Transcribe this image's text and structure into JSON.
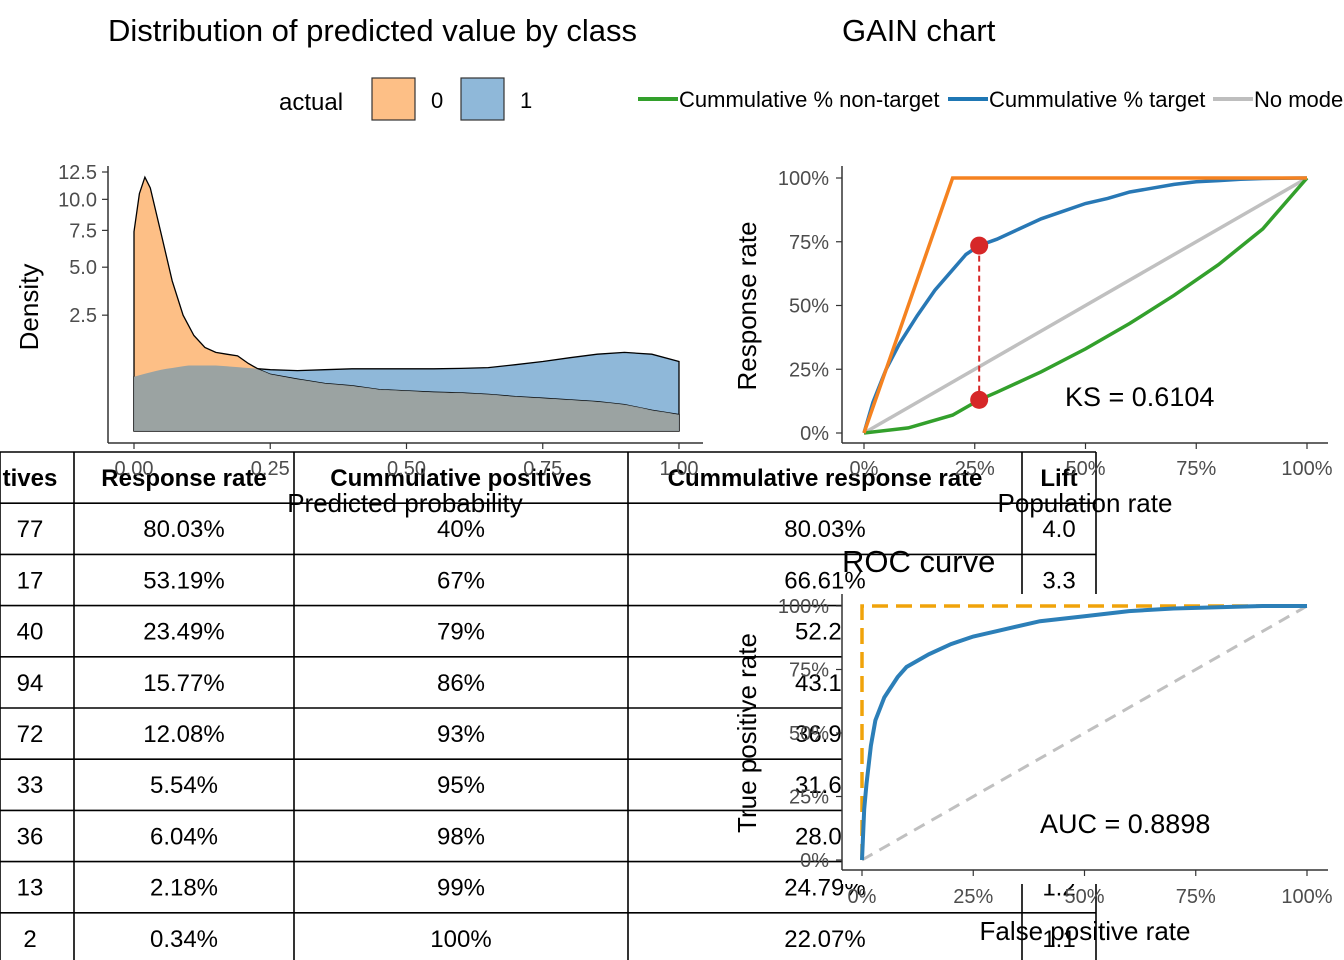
{
  "titles": {
    "density": "Distribution of predicted value by class",
    "gain": "GAIN chart",
    "roc": "ROC curve"
  },
  "legends": {
    "density": {
      "title": "actual",
      "items": [
        {
          "label": "0",
          "fill": "#fdbf86",
          "stroke": "#f28e2b"
        },
        {
          "label": "1",
          "fill": "#8fb8d9",
          "stroke": "#2c6ea3"
        }
      ]
    },
    "gain": {
      "items": [
        {
          "label": "Cummulative % non-target",
          "color": "#33a02c"
        },
        {
          "label": "Cummulative % target",
          "color": "#1f77b4"
        },
        {
          "label": "No mode",
          "color": "#bebebe"
        }
      ]
    }
  },
  "colors": {
    "class0_fill": "#fdbf86",
    "class1_fill": "#8fb8d9",
    "overlap_fill": "#96a1a3",
    "target": "#2878b5",
    "non_target": "#33a02c",
    "no_model": "#c0c0c0",
    "perfect": "#f58220",
    "ks_marker": "#d62728",
    "roc_curve": "#2c7fb8",
    "roc_ideal": "#f0a30a"
  },
  "chart_data": [
    {
      "type": "area",
      "name": "density",
      "xlabel": "Predicted probability",
      "ylabel": "Density",
      "x_ticks": [
        "0.00",
        "0.25",
        "0.50",
        "0.75",
        "1.00"
      ],
      "y_ticks": [
        "2.5",
        "5.0",
        "7.5",
        "10.0",
        "12.5"
      ],
      "xlim": [
        0,
        1
      ],
      "y_scale": "sqrt",
      "ylim": [
        0,
        12.5
      ],
      "grid": false,
      "legend_position": "top",
      "series": [
        {
          "name": "0",
          "x": [
            0,
            0.01,
            0.02,
            0.03,
            0.05,
            0.07,
            0.09,
            0.11,
            0.13,
            0.15,
            0.17,
            0.19,
            0.21,
            0.23,
            0.25,
            0.3,
            0.35,
            0.4,
            0.45,
            0.5,
            0.55,
            0.6,
            0.65,
            0.7,
            0.75,
            0.8,
            0.85,
            0.9,
            0.95,
            1.0
          ],
          "y": [
            7.4,
            10.5,
            12.0,
            11.0,
            7.2,
            4.2,
            2.5,
            1.7,
            1.3,
            1.15,
            1.1,
            1.05,
            0.85,
            0.7,
            0.6,
            0.5,
            0.42,
            0.38,
            0.32,
            0.3,
            0.28,
            0.27,
            0.25,
            0.22,
            0.2,
            0.18,
            0.16,
            0.13,
            0.08,
            0.05
          ]
        },
        {
          "name": "1",
          "x": [
            0,
            0.05,
            0.1,
            0.15,
            0.2,
            0.25,
            0.3,
            0.35,
            0.4,
            0.45,
            0.5,
            0.55,
            0.6,
            0.65,
            0.7,
            0.75,
            0.8,
            0.85,
            0.9,
            0.95,
            1.0
          ],
          "y": [
            0.55,
            0.7,
            0.8,
            0.8,
            0.75,
            0.7,
            0.68,
            0.7,
            0.72,
            0.72,
            0.72,
            0.72,
            0.73,
            0.75,
            0.82,
            0.9,
            1.0,
            1.1,
            1.15,
            1.1,
            0.9
          ]
        }
      ]
    },
    {
      "type": "line",
      "name": "gain",
      "xlabel": "Population rate",
      "ylabel": "Response rate",
      "x_ticks": [
        "0%",
        "25%",
        "50%",
        "75%",
        "100%"
      ],
      "y_ticks": [
        "0%",
        "25%",
        "50%",
        "75%",
        "100%"
      ],
      "xlim": [
        0,
        1
      ],
      "ylim": [
        0,
        1
      ],
      "grid": false,
      "legend_position": "top",
      "series": [
        {
          "name": "Cummulative % target",
          "x": [
            0,
            0.02,
            0.05,
            0.08,
            0.12,
            0.16,
            0.2,
            0.23,
            0.26,
            0.3,
            0.35,
            0.4,
            0.45,
            0.5,
            0.55,
            0.6,
            0.65,
            0.7,
            0.75,
            0.8,
            0.85,
            0.9,
            1.0
          ],
          "y": [
            0,
            0.12,
            0.25,
            0.35,
            0.46,
            0.56,
            0.64,
            0.7,
            0.735,
            0.76,
            0.8,
            0.84,
            0.87,
            0.9,
            0.92,
            0.945,
            0.96,
            0.975,
            0.985,
            0.99,
            0.995,
            0.998,
            1.0
          ]
        },
        {
          "name": "Cummulative % non-target",
          "x": [
            0,
            0.1,
            0.2,
            0.26,
            0.3,
            0.4,
            0.5,
            0.6,
            0.7,
            0.8,
            0.9,
            1.0
          ],
          "y": [
            0,
            0.02,
            0.07,
            0.13,
            0.16,
            0.24,
            0.33,
            0.43,
            0.54,
            0.66,
            0.8,
            1.0
          ]
        },
        {
          "name": "No mode",
          "x": [
            0,
            1
          ],
          "y": [
            0,
            1
          ]
        },
        {
          "name": "perfect model",
          "x": [
            0,
            0.2,
            1
          ],
          "y": [
            0,
            1,
            1
          ]
        }
      ],
      "ks_marker": {
        "x": 0.26,
        "y_target": 0.735,
        "y_non_target": 0.13
      },
      "annotation": "KS = 0.6104"
    },
    {
      "type": "line",
      "name": "roc",
      "xlabel": "False positive rate",
      "ylabel": "True positive rate",
      "x_ticks": [
        "0%",
        "25%",
        "50%",
        "75%",
        "100%"
      ],
      "y_ticks": [
        "0%",
        "25%",
        "50%",
        "75%",
        "100%"
      ],
      "xlim": [
        0,
        1
      ],
      "ylim": [
        0,
        1
      ],
      "grid": false,
      "series": [
        {
          "name": "roc",
          "x": [
            0,
            0.005,
            0.01,
            0.02,
            0.03,
            0.05,
            0.08,
            0.1,
            0.15,
            0.2,
            0.25,
            0.3,
            0.4,
            0.5,
            0.6,
            0.7,
            0.8,
            0.9,
            1.0
          ],
          "y": [
            0,
            0.2,
            0.3,
            0.45,
            0.55,
            0.64,
            0.72,
            0.76,
            0.81,
            0.85,
            0.88,
            0.9,
            0.94,
            0.96,
            0.98,
            0.99,
            0.995,
            1.0,
            1.0
          ]
        },
        {
          "name": "random",
          "x": [
            0,
            1
          ],
          "y": [
            0,
            1
          ]
        },
        {
          "name": "ideal",
          "x": [
            0,
            0,
            1
          ],
          "y": [
            0,
            1,
            1
          ]
        }
      ],
      "annotation": "AUC = 0.8898"
    }
  ],
  "table": {
    "headers": [
      "tives",
      "Response rate",
      "Cummulative positives",
      "Cummulative response rate",
      "Lift"
    ],
    "rows": [
      [
        "77",
        "80.03%",
        "40%",
        "80.03%",
        "4.0"
      ],
      [
        "17",
        "53.19%",
        "67%",
        "66.61%",
        "3.3"
      ],
      [
        "40",
        "23.49%",
        "79%",
        "52.24",
        ""
      ],
      [
        "94",
        "15.77%",
        "86%",
        "43.12",
        ""
      ],
      [
        "72",
        "12.08%",
        "93%",
        "36.91",
        ""
      ],
      [
        "33",
        "5.54%",
        "95%",
        "31.68",
        ""
      ],
      [
        "36",
        "6.04%",
        "98%",
        "28.02",
        ""
      ],
      [
        "13",
        "2.18%",
        "99%",
        "24.79%",
        "1.2"
      ],
      [
        "2",
        "0.34%",
        "100%",
        "22.07%",
        "1.1"
      ]
    ]
  }
}
